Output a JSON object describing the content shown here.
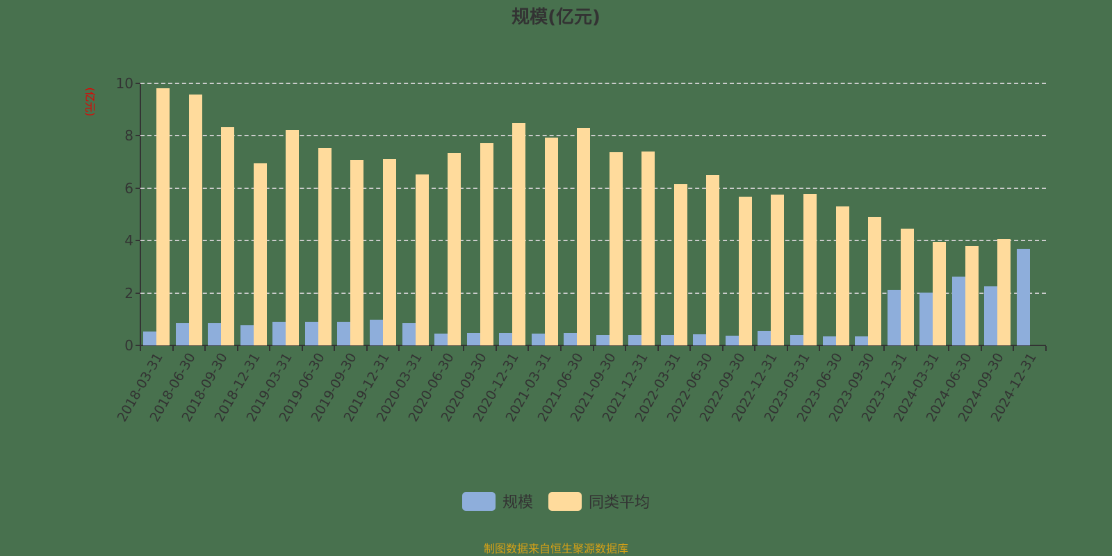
{
  "title": "规模(亿元)",
  "y_axis_title": "(亿元)",
  "legend": [
    {
      "label": "规模",
      "color": "#8eaedb"
    },
    {
      "label": "同类平均",
      "color": "#ffdb9c"
    }
  ],
  "source": "制图数据来自恒生聚源数据库",
  "colors": {
    "background": "#48714e",
    "series1": "#8eaedb",
    "series2": "#ffdb9c",
    "ytitle": "#e60000",
    "source": "#d4a017"
  },
  "chart_data": {
    "type": "bar",
    "title": "规模(亿元)",
    "xlabel": "",
    "ylabel": "(亿元)",
    "ylim": [
      0,
      10
    ],
    "yticks": [
      0,
      2,
      4,
      6,
      8,
      10
    ],
    "grid": true,
    "legend_position": "bottom",
    "categories": [
      "2018-03-31",
      "2018-06-30",
      "2018-09-30",
      "2018-12-31",
      "2019-03-31",
      "2019-06-30",
      "2019-09-30",
      "2019-12-31",
      "2020-03-31",
      "2020-06-30",
      "2020-09-30",
      "2020-12-31",
      "2021-03-31",
      "2021-06-30",
      "2021-09-30",
      "2021-12-31",
      "2022-03-31",
      "2022-06-30",
      "2022-09-30",
      "2022-12-31",
      "2023-03-31",
      "2023-06-30",
      "2023-09-30",
      "2023-12-31",
      "2024-03-31",
      "2024-06-30",
      "2024-09-30",
      "2024-12-31"
    ],
    "series": [
      {
        "name": "规模",
        "values": [
          0.52,
          0.84,
          0.84,
          0.76,
          0.89,
          0.89,
          0.89,
          0.97,
          0.84,
          0.44,
          0.47,
          0.47,
          0.44,
          0.47,
          0.41,
          0.41,
          0.39,
          0.42,
          0.36,
          0.55,
          0.39,
          0.34,
          0.34,
          2.12,
          2.01,
          2.62,
          2.25,
          3.69
        ]
      },
      {
        "name": "同类平均",
        "values": [
          9.81,
          9.57,
          8.34,
          6.96,
          8.21,
          7.53,
          7.09,
          7.12,
          6.53,
          7.36,
          7.73,
          8.5,
          7.92,
          8.29,
          7.38,
          7.41,
          6.16,
          6.51,
          5.68,
          5.76,
          5.79,
          5.31,
          4.91,
          4.46,
          3.96,
          3.8,
          4.06,
          null
        ]
      }
    ]
  }
}
